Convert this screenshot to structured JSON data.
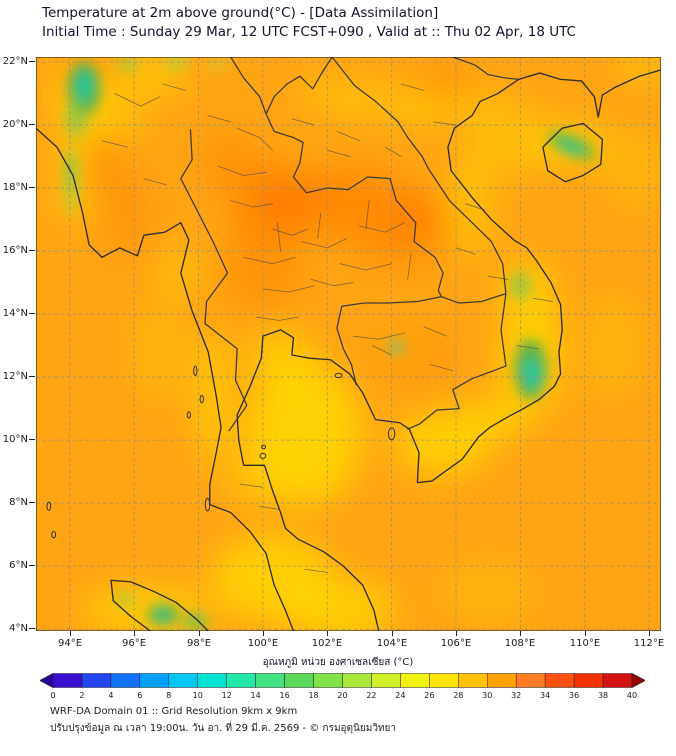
{
  "header": {
    "title": "Temperature at 2m above ground(°C) - [Data Assimilation]",
    "subtitle": "Initial Time : Sunday 29 Mar, 12 UTC FCST+090 , Valid at :: Thu 02 Apr, 18 UTC"
  },
  "axes": {
    "y_ticks": [
      "22°N",
      "20°N",
      "18°N",
      "16°N",
      "14°N",
      "12°N",
      "10°N",
      "8°N",
      "6°N",
      "4°N"
    ],
    "x_ticks": [
      "94°E",
      "96°E",
      "98°E",
      "100°E",
      "102°E",
      "104°E",
      "106°E",
      "108°E",
      "110°E",
      "112°E"
    ]
  },
  "colorbar": {
    "title": "อุณหภูมิ หน่วย องศาเซลเซียส (°C)",
    "ticks": [
      0,
      2,
      4,
      6,
      8,
      10,
      12,
      14,
      16,
      18,
      20,
      22,
      24,
      26,
      28,
      30,
      32,
      34,
      36,
      38,
      40
    ],
    "segment_colors": [
      "#3a10d0",
      "#2244f2",
      "#1272ff",
      "#00a2ff",
      "#00c8f2",
      "#00e2d2",
      "#22e8aa",
      "#42e282",
      "#5ad85a",
      "#82e24a",
      "#aae83a",
      "#d2f02a",
      "#f2f212",
      "#ffe400",
      "#ffc200",
      "#ffa200",
      "#ff7a22",
      "#ff5212",
      "#f23202",
      "#d21212"
    ],
    "under_arrow_color": "#2a00a0",
    "over_arrow_color": "#a00000"
  },
  "footer": {
    "line1": "WRF-DA Domain 01 :: Grid Resolution 9km x 9km",
    "line2": "ปรับปรุงข้อมูล ณ เวลา 19:00น. วัน อา. ที่ 29 มี.ค. 2569 - © กรมอุตุนิยมวิทยา"
  },
  "map": {
    "extent": {
      "lon_min_e": 93.0,
      "lon_max_e": 112.4,
      "lat_min_n": 3.9,
      "lat_max_n": 22.2
    },
    "base_color": "#ffa413",
    "base_temp_c": 31,
    "features": [
      {
        "area": "North and Northeast Thailand / southern Laos",
        "approx_temp_c": 33,
        "color": "#ff8800"
      },
      {
        "area": "Gulf of Thailand and Mekong delta",
        "approx_temp_c": 28,
        "color": "#ffd800"
      },
      {
        "area": "Vietnam Central Highlands (Da Lat)",
        "approx_temp_c": 16,
        "color": "#1ecbb2"
      },
      {
        "area": "Western Myanmar Chin/Rakhine mountains",
        "approx_temp_c": 16,
        "color": "#1cc9a4"
      },
      {
        "area": "Hainan island highlands",
        "approx_temp_c": 20,
        "color": "#56bb4a"
      },
      {
        "area": "Northern Sumatra mountains",
        "approx_temp_c": 20,
        "color": "#4db04a"
      }
    ]
  }
}
